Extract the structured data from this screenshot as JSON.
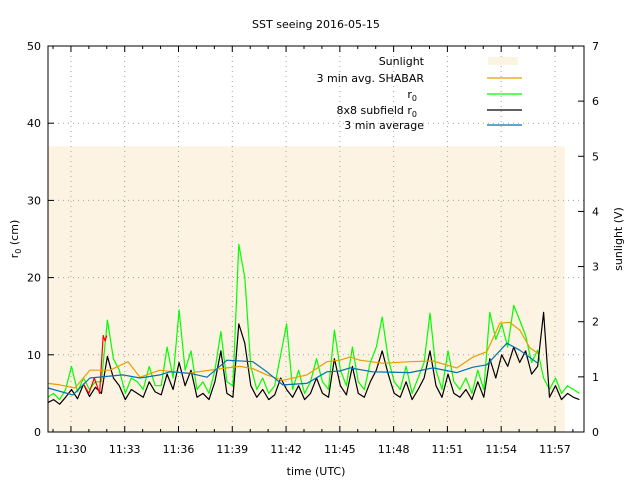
{
  "chart_data": {
    "type": "line",
    "title": "SST seeing 2016-05-15",
    "xlabel": "time (UTC)",
    "ylabel": "r",
    "ylabel_sub": "0",
    "ylabel_unit": " (cm)",
    "y2label": "sunlight (V)",
    "xlim_minutes_after_11h": [
      28.72,
      58.62
    ],
    "ylim": [
      0,
      50
    ],
    "y2lim": [
      0,
      7
    ],
    "grid": true,
    "legend_placement": "top-right",
    "x_ticks": [
      {
        "t": 30,
        "label": "11:30"
      },
      {
        "t": 33,
        "label": "11:33"
      },
      {
        "t": 36,
        "label": "11:36"
      },
      {
        "t": 39,
        "label": "11:39"
      },
      {
        "t": 42,
        "label": "11:42"
      },
      {
        "t": 45,
        "label": "11:45"
      },
      {
        "t": 48,
        "label": "11:48"
      },
      {
        "t": 51,
        "label": "11:51"
      },
      {
        "t": 54,
        "label": "11:54"
      },
      {
        "t": 57,
        "label": "11:57"
      }
    ],
    "y_ticks": [
      "0",
      "10",
      "20",
      "30",
      "40",
      "50"
    ],
    "y2_ticks": [
      "0",
      "1",
      "2",
      "3",
      "4",
      "5",
      "6",
      "7"
    ],
    "legend": [
      {
        "label": "Sunlight",
        "sub": "",
        "color": "#fdf3e2",
        "kind": "box"
      },
      {
        "label": "3 min avg. SHABAR",
        "sub": "",
        "color": "#e69f00",
        "kind": "line"
      },
      {
        "label": "r",
        "sub": "0",
        "color": "#00ff00",
        "kind": "line"
      },
      {
        "label": "8x8 subfield r",
        "sub": "0",
        "color": "#000000",
        "kind": "line"
      },
      {
        "label": "3 min average",
        "sub": "",
        "color": "#0072b2",
        "kind": "line"
      }
    ],
    "sunlight": {
      "t_start": 28.72,
      "t_end": 57.55,
      "volts": 5.18,
      "color": "#fdf3e2"
    },
    "series": [
      {
        "name": "r0",
        "color": "#00ff00",
        "t_start": 28.7,
        "t_step": 0.3333,
        "values": [
          4.5,
          5.0,
          4.2,
          5.5,
          8.5,
          5.2,
          7.0,
          5.5,
          6.5,
          6.5,
          14.5,
          9.5,
          8.0,
          5.0,
          7.0,
          6.5,
          5.5,
          8.5,
          6.0,
          6.0,
          11.0,
          7.0,
          15.8,
          8.0,
          10.5,
          5.5,
          6.5,
          5.0,
          8.0,
          13.0,
          6.5,
          6.0,
          24.3,
          20.0,
          8.5,
          5.5,
          7.0,
          5.0,
          6.0,
          10.0,
          14.0,
          5.5,
          8.0,
          5.0,
          6.5,
          9.5,
          6.5,
          5.5,
          13.2,
          8.0,
          6.0,
          11.0,
          6.5,
          5.5,
          9.0,
          11.0,
          14.9,
          9.5,
          6.5,
          5.5,
          8.5,
          5.0,
          7.0,
          9.0,
          15.4,
          8.0,
          5.5,
          10.5,
          6.5,
          5.5,
          7.0,
          5.0,
          8.0,
          5.5,
          15.5,
          12.0,
          14.0,
          11.0,
          16.4,
          14.5,
          12.5,
          9.0,
          10.6,
          7.0,
          5.5,
          7.0,
          5.0,
          6.0,
          5.5,
          5.0
        ]
      },
      {
        "name": "8x8 subfield r0",
        "color": "#000000",
        "t_start": 28.7,
        "t_step": 0.3333,
        "values": [
          3.8,
          4.2,
          3.6,
          4.5,
          5.5,
          4.3,
          6.2,
          4.6,
          5.8,
          5.0,
          9.8,
          7.0,
          6.0,
          4.2,
          5.5,
          5.0,
          4.5,
          6.5,
          5.2,
          4.8,
          7.5,
          5.5,
          9.0,
          6.0,
          8.0,
          4.5,
          5.0,
          4.2,
          6.5,
          10.5,
          5.0,
          4.5,
          14.0,
          11.5,
          6.0,
          4.5,
          5.5,
          4.2,
          4.8,
          7.0,
          5.5,
          4.5,
          6.0,
          4.2,
          5.0,
          7.0,
          5.0,
          4.5,
          9.5,
          6.0,
          4.8,
          8.5,
          5.0,
          4.5,
          6.5,
          8.0,
          10.5,
          7.5,
          5.0,
          4.5,
          6.5,
          4.2,
          5.5,
          7.0,
          10.5,
          6.0,
          4.5,
          7.5,
          5.0,
          4.5,
          5.5,
          4.2,
          6.5,
          4.5,
          9.5,
          7.0,
          10.0,
          8.5,
          11.0,
          9.0,
          10.5,
          7.5,
          8.5,
          15.5,
          4.5,
          6.0,
          4.2,
          5.0,
          4.5,
          4.2
        ]
      },
      {
        "name": "r0 (unlabelled red)",
        "color": "#ff0000",
        "points": [
          [
            30.7,
            6.2
          ],
          [
            31.0,
            5.0
          ],
          [
            31.3,
            7.0
          ],
          [
            31.6,
            5.0
          ],
          [
            31.8,
            12.5
          ],
          [
            31.9,
            11.8
          ],
          [
            32.0,
            12.5
          ]
        ]
      },
      {
        "name": "3 min avg. SHABAR",
        "color": "#e69f00",
        "points": [
          [
            28.72,
            6.3
          ],
          [
            29.39,
            6.1
          ],
          [
            30.22,
            5.7
          ],
          [
            31.06,
            8.0
          ],
          [
            32.18,
            8.0
          ],
          [
            33.18,
            9.1
          ],
          [
            33.85,
            7.1
          ],
          [
            34.96,
            8.0
          ],
          [
            36.47,
            7.6
          ],
          [
            38.7,
            8.3
          ],
          [
            39.43,
            8.5
          ],
          [
            40.15,
            8.2
          ],
          [
            40.93,
            7.4
          ],
          [
            41.82,
            6.7
          ],
          [
            43.16,
            7.4
          ],
          [
            44.28,
            9.1
          ],
          [
            45.0,
            9.3
          ],
          [
            45.56,
            9.7
          ],
          [
            46.12,
            9.3
          ],
          [
            47.4,
            8.9
          ],
          [
            48.9,
            9.1
          ],
          [
            50.19,
            9.2
          ],
          [
            51.53,
            8.3
          ],
          [
            52.42,
            9.7
          ],
          [
            53.2,
            10.4
          ],
          [
            53.93,
            14.1
          ],
          [
            54.48,
            14.2
          ],
          [
            55.04,
            13.2
          ],
          [
            55.6,
            10.9
          ],
          [
            56.05,
            10.2
          ]
        ]
      },
      {
        "name": "3 min average",
        "color": "#0072b2",
        "points": [
          [
            28.72,
            5.7
          ],
          [
            30.11,
            4.8
          ],
          [
            31.06,
            7.0
          ],
          [
            32.9,
            7.4
          ],
          [
            33.85,
            7.0
          ],
          [
            34.96,
            7.4
          ],
          [
            35.52,
            7.8
          ],
          [
            36.64,
            7.6
          ],
          [
            37.59,
            7.1
          ],
          [
            38.7,
            9.3
          ],
          [
            40.15,
            9.1
          ],
          [
            40.93,
            7.8
          ],
          [
            41.82,
            6.1
          ],
          [
            43.16,
            6.3
          ],
          [
            44.28,
            7.8
          ],
          [
            45.0,
            7.9
          ],
          [
            45.56,
            8.3
          ],
          [
            46.84,
            7.8
          ],
          [
            48.9,
            7.7
          ],
          [
            50.19,
            8.3
          ],
          [
            51.53,
            7.7
          ],
          [
            52.42,
            8.4
          ],
          [
            53.2,
            8.7
          ],
          [
            54.32,
            11.5
          ],
          [
            55.04,
            10.6
          ],
          [
            56.05,
            8.9
          ]
        ]
      }
    ]
  }
}
